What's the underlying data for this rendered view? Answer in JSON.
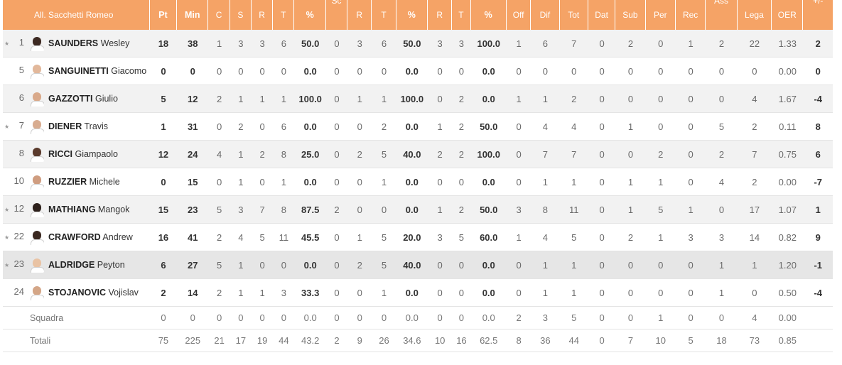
{
  "team_name": "All. Sacchetti Romeo",
  "headers": {
    "pt": "Pt",
    "min": "Min",
    "c": "C",
    "s": "S",
    "r": "R",
    "t": "T",
    "pct": "%",
    "sc": "Sc",
    "r2": "R",
    "t2": "T",
    "pct2": "%",
    "r3": "R",
    "t3": "T",
    "pct3": "%",
    "off": "Off",
    "dif": "Dif",
    "tot": "Tot",
    "dat": "Dat",
    "sub": "Sub",
    "per": "Per",
    "rec": "Rec",
    "ass": "Ass",
    "lega": "Lega",
    "oer": "OER",
    "pm": "+/-"
  },
  "players": [
    {
      "starter": true,
      "num": "1",
      "surname": "SAUNDERS",
      "first": "Wesley",
      "skin": "#3d2a22",
      "stats": [
        "18",
        "38",
        "1",
        "3",
        "3",
        "6",
        "50.0",
        "0",
        "3",
        "6",
        "50.0",
        "3",
        "3",
        "100.0",
        "1",
        "6",
        "7",
        "0",
        "2",
        "0",
        "1",
        "2",
        "22",
        "1.33",
        "2"
      ]
    },
    {
      "starter": false,
      "num": "5",
      "surname": "SANGUINETTI",
      "first": "Giacomo",
      "skin": "#e2b89b",
      "stats": [
        "0",
        "0",
        "0",
        "0",
        "0",
        "0",
        "0.0",
        "0",
        "0",
        "0",
        "0.0",
        "0",
        "0",
        "0.0",
        "0",
        "0",
        "0",
        "0",
        "0",
        "0",
        "0",
        "0",
        "0",
        "0.00",
        "0"
      ]
    },
    {
      "starter": false,
      "num": "6",
      "surname": "GAZZOTTI",
      "first": "Giulio",
      "skin": "#d9a98a",
      "stats": [
        "5",
        "12",
        "2",
        "1",
        "1",
        "1",
        "100.0",
        "0",
        "1",
        "1",
        "100.0",
        "0",
        "2",
        "0.0",
        "1",
        "1",
        "2",
        "0",
        "0",
        "0",
        "0",
        "0",
        "4",
        "1.67",
        "-4"
      ]
    },
    {
      "starter": true,
      "num": "7",
      "surname": "DIENER",
      "first": "Travis",
      "skin": "#d8ac90",
      "stats": [
        "1",
        "31",
        "0",
        "2",
        "0",
        "6",
        "0.0",
        "0",
        "0",
        "2",
        "0.0",
        "1",
        "2",
        "50.0",
        "0",
        "4",
        "4",
        "0",
        "1",
        "0",
        "0",
        "5",
        "2",
        "0.11",
        "8"
      ]
    },
    {
      "starter": false,
      "num": "8",
      "surname": "RICCI",
      "first": "Giampaolo",
      "skin": "#5a3a2c",
      "stats": [
        "12",
        "24",
        "4",
        "1",
        "2",
        "8",
        "25.0",
        "0",
        "2",
        "5",
        "40.0",
        "2",
        "2",
        "100.0",
        "0",
        "7",
        "7",
        "0",
        "0",
        "2",
        "0",
        "2",
        "7",
        "0.75",
        "6"
      ]
    },
    {
      "starter": false,
      "num": "10",
      "surname": "RUZZIER",
      "first": "Michele",
      "skin": "#cf9d80",
      "stats": [
        "0",
        "15",
        "0",
        "1",
        "0",
        "1",
        "0.0",
        "0",
        "0",
        "1",
        "0.0",
        "0",
        "0",
        "0.0",
        "0",
        "1",
        "1",
        "0",
        "1",
        "1",
        "0",
        "4",
        "2",
        "0.00",
        "-7"
      ]
    },
    {
      "starter": true,
      "num": "12",
      "surname": "MATHIANG",
      "first": "Mangok",
      "skin": "#2e211c",
      "stats": [
        "15",
        "23",
        "5",
        "3",
        "7",
        "8",
        "87.5",
        "2",
        "0",
        "0",
        "0.0",
        "1",
        "2",
        "50.0",
        "3",
        "8",
        "11",
        "0",
        "1",
        "5",
        "1",
        "0",
        "17",
        "1.07",
        "1"
      ]
    },
    {
      "starter": true,
      "num": "22",
      "surname": "CRAWFORD",
      "first": "Andrew",
      "skin": "#3a2820",
      "stats": [
        "16",
        "41",
        "2",
        "4",
        "5",
        "11",
        "45.5",
        "0",
        "1",
        "5",
        "20.0",
        "3",
        "5",
        "60.0",
        "1",
        "4",
        "5",
        "0",
        "2",
        "1",
        "3",
        "3",
        "14",
        "0.82",
        "9"
      ]
    },
    {
      "starter": true,
      "num": "23",
      "surname": "ALDRIDGE",
      "first": "Peyton",
      "skin": "#e9c3a4",
      "stats": [
        "6",
        "27",
        "5",
        "1",
        "0",
        "0",
        "0.0",
        "0",
        "2",
        "5",
        "40.0",
        "0",
        "0",
        "0.0",
        "0",
        "1",
        "1",
        "0",
        "0",
        "0",
        "0",
        "1",
        "1",
        "1.20",
        "-1"
      ]
    },
    {
      "starter": false,
      "num": "24",
      "surname": "STOJANOVIC",
      "first": "Vojislav",
      "skin": "#d4a687",
      "stats": [
        "2",
        "14",
        "2",
        "1",
        "1",
        "3",
        "33.3",
        "0",
        "0",
        "1",
        "0.0",
        "0",
        "0",
        "0.0",
        "0",
        "1",
        "1",
        "0",
        "0",
        "0",
        "0",
        "1",
        "0",
        "0.50",
        "-4"
      ]
    }
  ],
  "squadra": {
    "label": "Squadra",
    "stats": [
      "0",
      "0",
      "0",
      "0",
      "0",
      "0",
      "0.0",
      "0",
      "0",
      "0",
      "0.0",
      "0",
      "0",
      "0.0",
      "2",
      "3",
      "5",
      "0",
      "0",
      "1",
      "0",
      "0",
      "4",
      "0.00",
      ""
    ]
  },
  "totali": {
    "label": "Totali",
    "stats": [
      "75",
      "225",
      "21",
      "17",
      "19",
      "44",
      "43.2",
      "2",
      "9",
      "26",
      "34.6",
      "10",
      "16",
      "62.5",
      "8",
      "36",
      "44",
      "0",
      "7",
      "10",
      "5",
      "18",
      "73",
      "0.85",
      ""
    ]
  }
}
